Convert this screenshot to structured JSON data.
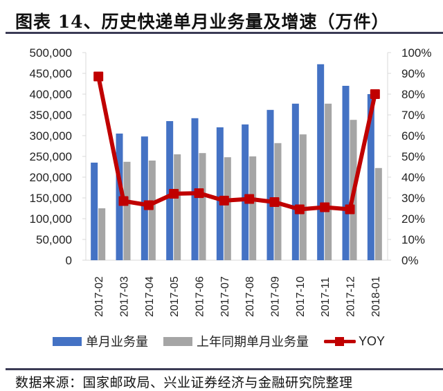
{
  "header": {
    "title": "图表 14、历史快递单月业务量及增速（万件）"
  },
  "footer": {
    "source": "数据来源：国家邮政局、兴业证券经济与金融研究院整理"
  },
  "legend": {
    "items": [
      {
        "label": "单月业务量",
        "color": "#4472c4"
      },
      {
        "label": "上年同期单月业务量",
        "color": "#a5a5a5"
      },
      {
        "label": "YOY",
        "color": "#c00000"
      }
    ]
  },
  "axes": {
    "left_ticks": [
      "0",
      "50,000",
      "100,000",
      "150,000",
      "200,000",
      "250,000",
      "300,000",
      "350,000",
      "400,000",
      "450,000",
      "500,000"
    ],
    "right_ticks": [
      "0%",
      "10%",
      "20%",
      "30%",
      "40%",
      "50%",
      "60%",
      "70%",
      "80%",
      "90%",
      "100%"
    ]
  },
  "chart_data": {
    "type": "bar",
    "title": "图表 14、历史快递单月业务量及增速（万件）",
    "xlabel": "",
    "ylabel": "",
    "categories": [
      "2017-02",
      "2017-03",
      "2017-04",
      "2017-05",
      "2017-06",
      "2017-07",
      "2017-08",
      "2017-09",
      "2017-10",
      "2017-11",
      "2017-12",
      "2018-01"
    ],
    "series": [
      {
        "name": "单月业务量",
        "type": "bar",
        "axis": "left",
        "color": "#4472c4",
        "values": [
          235000,
          305000,
          298000,
          335000,
          342000,
          320000,
          327000,
          362000,
          377000,
          472000,
          420000,
          400000
        ]
      },
      {
        "name": "上年同期单月业务量",
        "type": "bar",
        "axis": "left",
        "color": "#a5a5a5",
        "values": [
          125000,
          237000,
          240000,
          255000,
          258000,
          248000,
          250000,
          282000,
          303000,
          377000,
          338000,
          222000
        ]
      },
      {
        "name": "YOY",
        "type": "line",
        "axis": "right",
        "color": "#c00000",
        "values": [
          0.885,
          0.285,
          0.265,
          0.32,
          0.323,
          0.287,
          0.295,
          0.28,
          0.245,
          0.255,
          0.245,
          0.8
        ]
      }
    ],
    "ylim": [
      0,
      500000
    ],
    "y2lim": [
      0,
      1.0
    ],
    "grid": false,
    "legend_position": "bottom",
    "source": "数据来源：国家邮政局、兴业证券经济与金融研究院整理"
  }
}
